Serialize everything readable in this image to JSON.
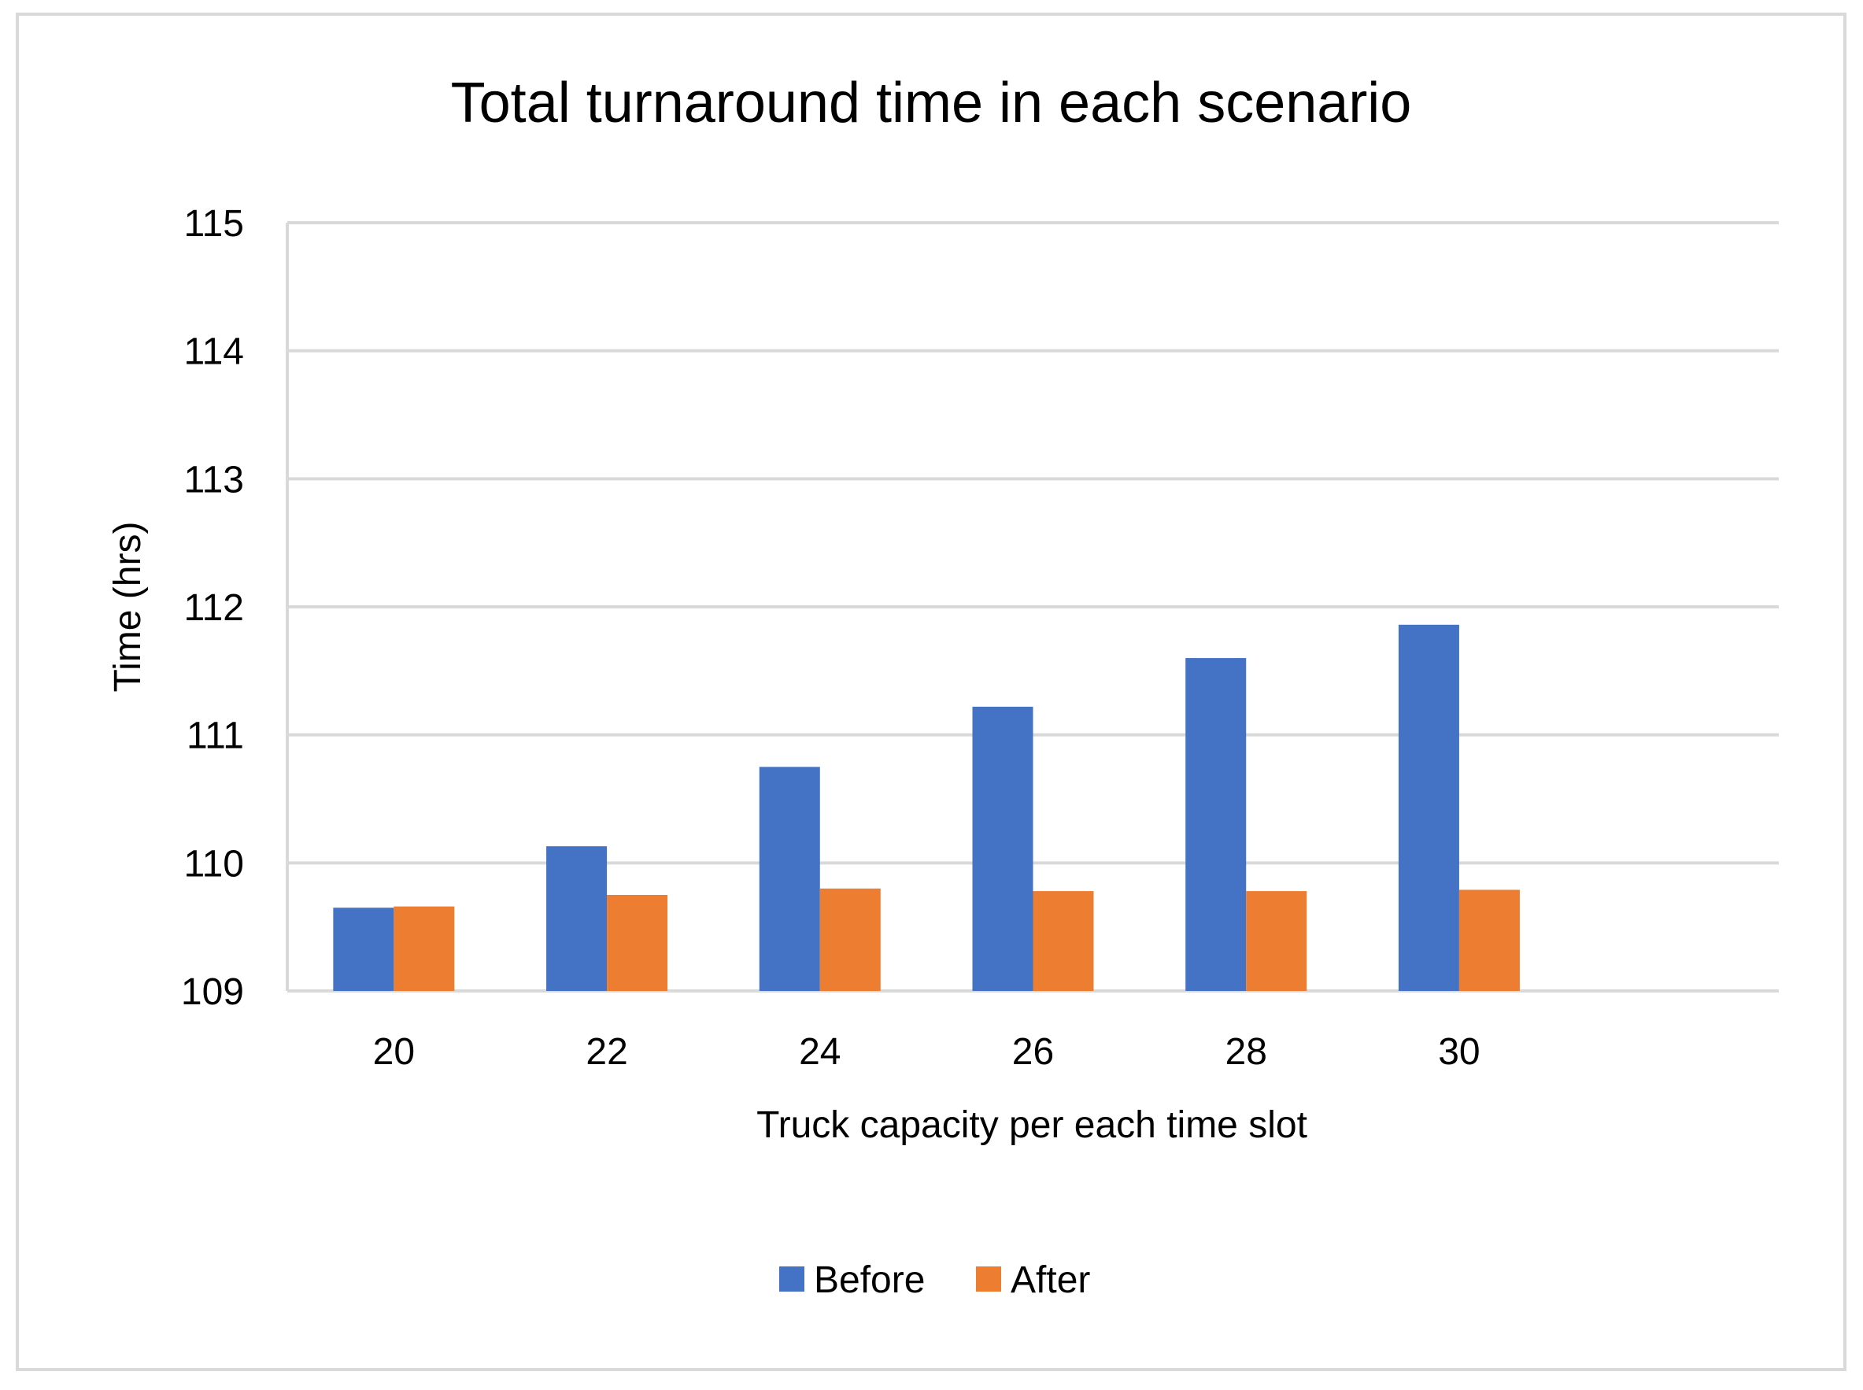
{
  "chart_data": {
    "type": "bar",
    "title": "Total turnaround time in each scenario",
    "xlabel": "Truck capacity per each time slot",
    "ylabel": "Time (hrs)",
    "categories": [
      "20",
      "22",
      "24",
      "26",
      "28",
      "30",
      ""
    ],
    "series": [
      {
        "name": "Before",
        "color": "#4472C4",
        "values": [
          109.65,
          110.13,
          110.75,
          111.22,
          111.6,
          111.86,
          null
        ]
      },
      {
        "name": "After",
        "color": "#ED7D31",
        "values": [
          109.66,
          109.75,
          109.8,
          109.78,
          109.78,
          109.79,
          null
        ]
      }
    ],
    "ylim": [
      109,
      115
    ],
    "yticks": [
      "109",
      "110",
      "111",
      "112",
      "113",
      "114",
      "115"
    ],
    "grid": true,
    "legend_position": "bottom"
  }
}
